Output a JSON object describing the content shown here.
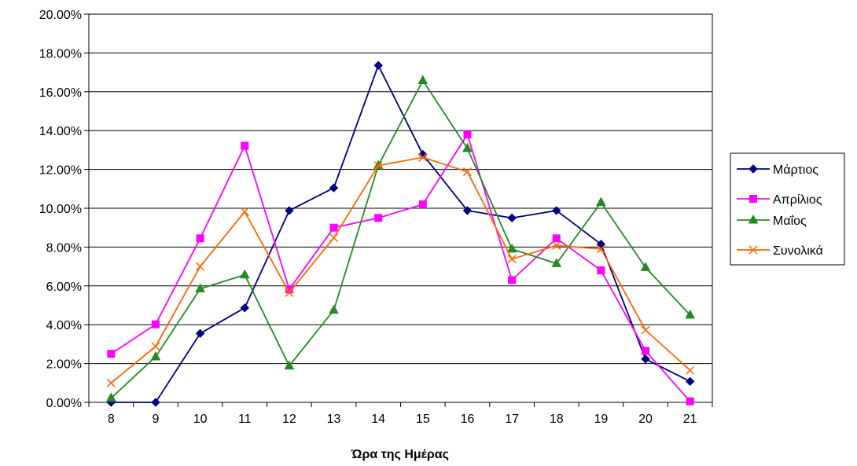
{
  "chart_data": {
    "type": "line",
    "title": "",
    "xlabel": "Ώρα της Ημέρας",
    "ylabel": "",
    "x": [
      "8",
      "9",
      "10",
      "11",
      "12",
      "13",
      "14",
      "15",
      "16",
      "17",
      "18",
      "19",
      "20",
      "21"
    ],
    "ylim": [
      0,
      0.2
    ],
    "y_tick_step": 0.02,
    "y_format": "percent_2dp",
    "grid": "horizontal",
    "legend_placement": "right",
    "series": [
      {
        "name": "Μάρτιος",
        "color": "#000080",
        "marker": "diamond",
        "values": [
          0.0,
          0.0,
          0.0355,
          0.0487,
          0.0988,
          0.1105,
          0.1736,
          0.1277,
          0.0988,
          0.095,
          0.0988,
          0.0815,
          0.0223,
          0.0108
        ]
      },
      {
        "name": "Απρίλιος",
        "color": "#FF00FF",
        "marker": "square",
        "values": [
          0.025,
          0.0402,
          0.0845,
          0.1322,
          0.0582,
          0.09,
          0.095,
          0.102,
          0.138,
          0.063,
          0.0845,
          0.068,
          0.0265,
          0.0005
        ]
      },
      {
        "name": "Μαΐος",
        "color": "#228B22",
        "marker": "triangle",
        "values": [
          0.0022,
          0.0235,
          0.0585,
          0.0657,
          0.0188,
          0.0475,
          0.122,
          0.1658,
          0.1308,
          0.079,
          0.0715,
          0.103,
          0.0695,
          0.045
        ]
      },
      {
        "name": "Συνολικά",
        "color": "#FF6600",
        "marker": "x",
        "values": [
          0.01,
          0.0288,
          0.07,
          0.0982,
          0.0565,
          0.0848,
          0.122,
          0.1262,
          0.1188,
          0.0738,
          0.0808,
          0.079,
          0.0372,
          0.0165
        ]
      }
    ]
  }
}
